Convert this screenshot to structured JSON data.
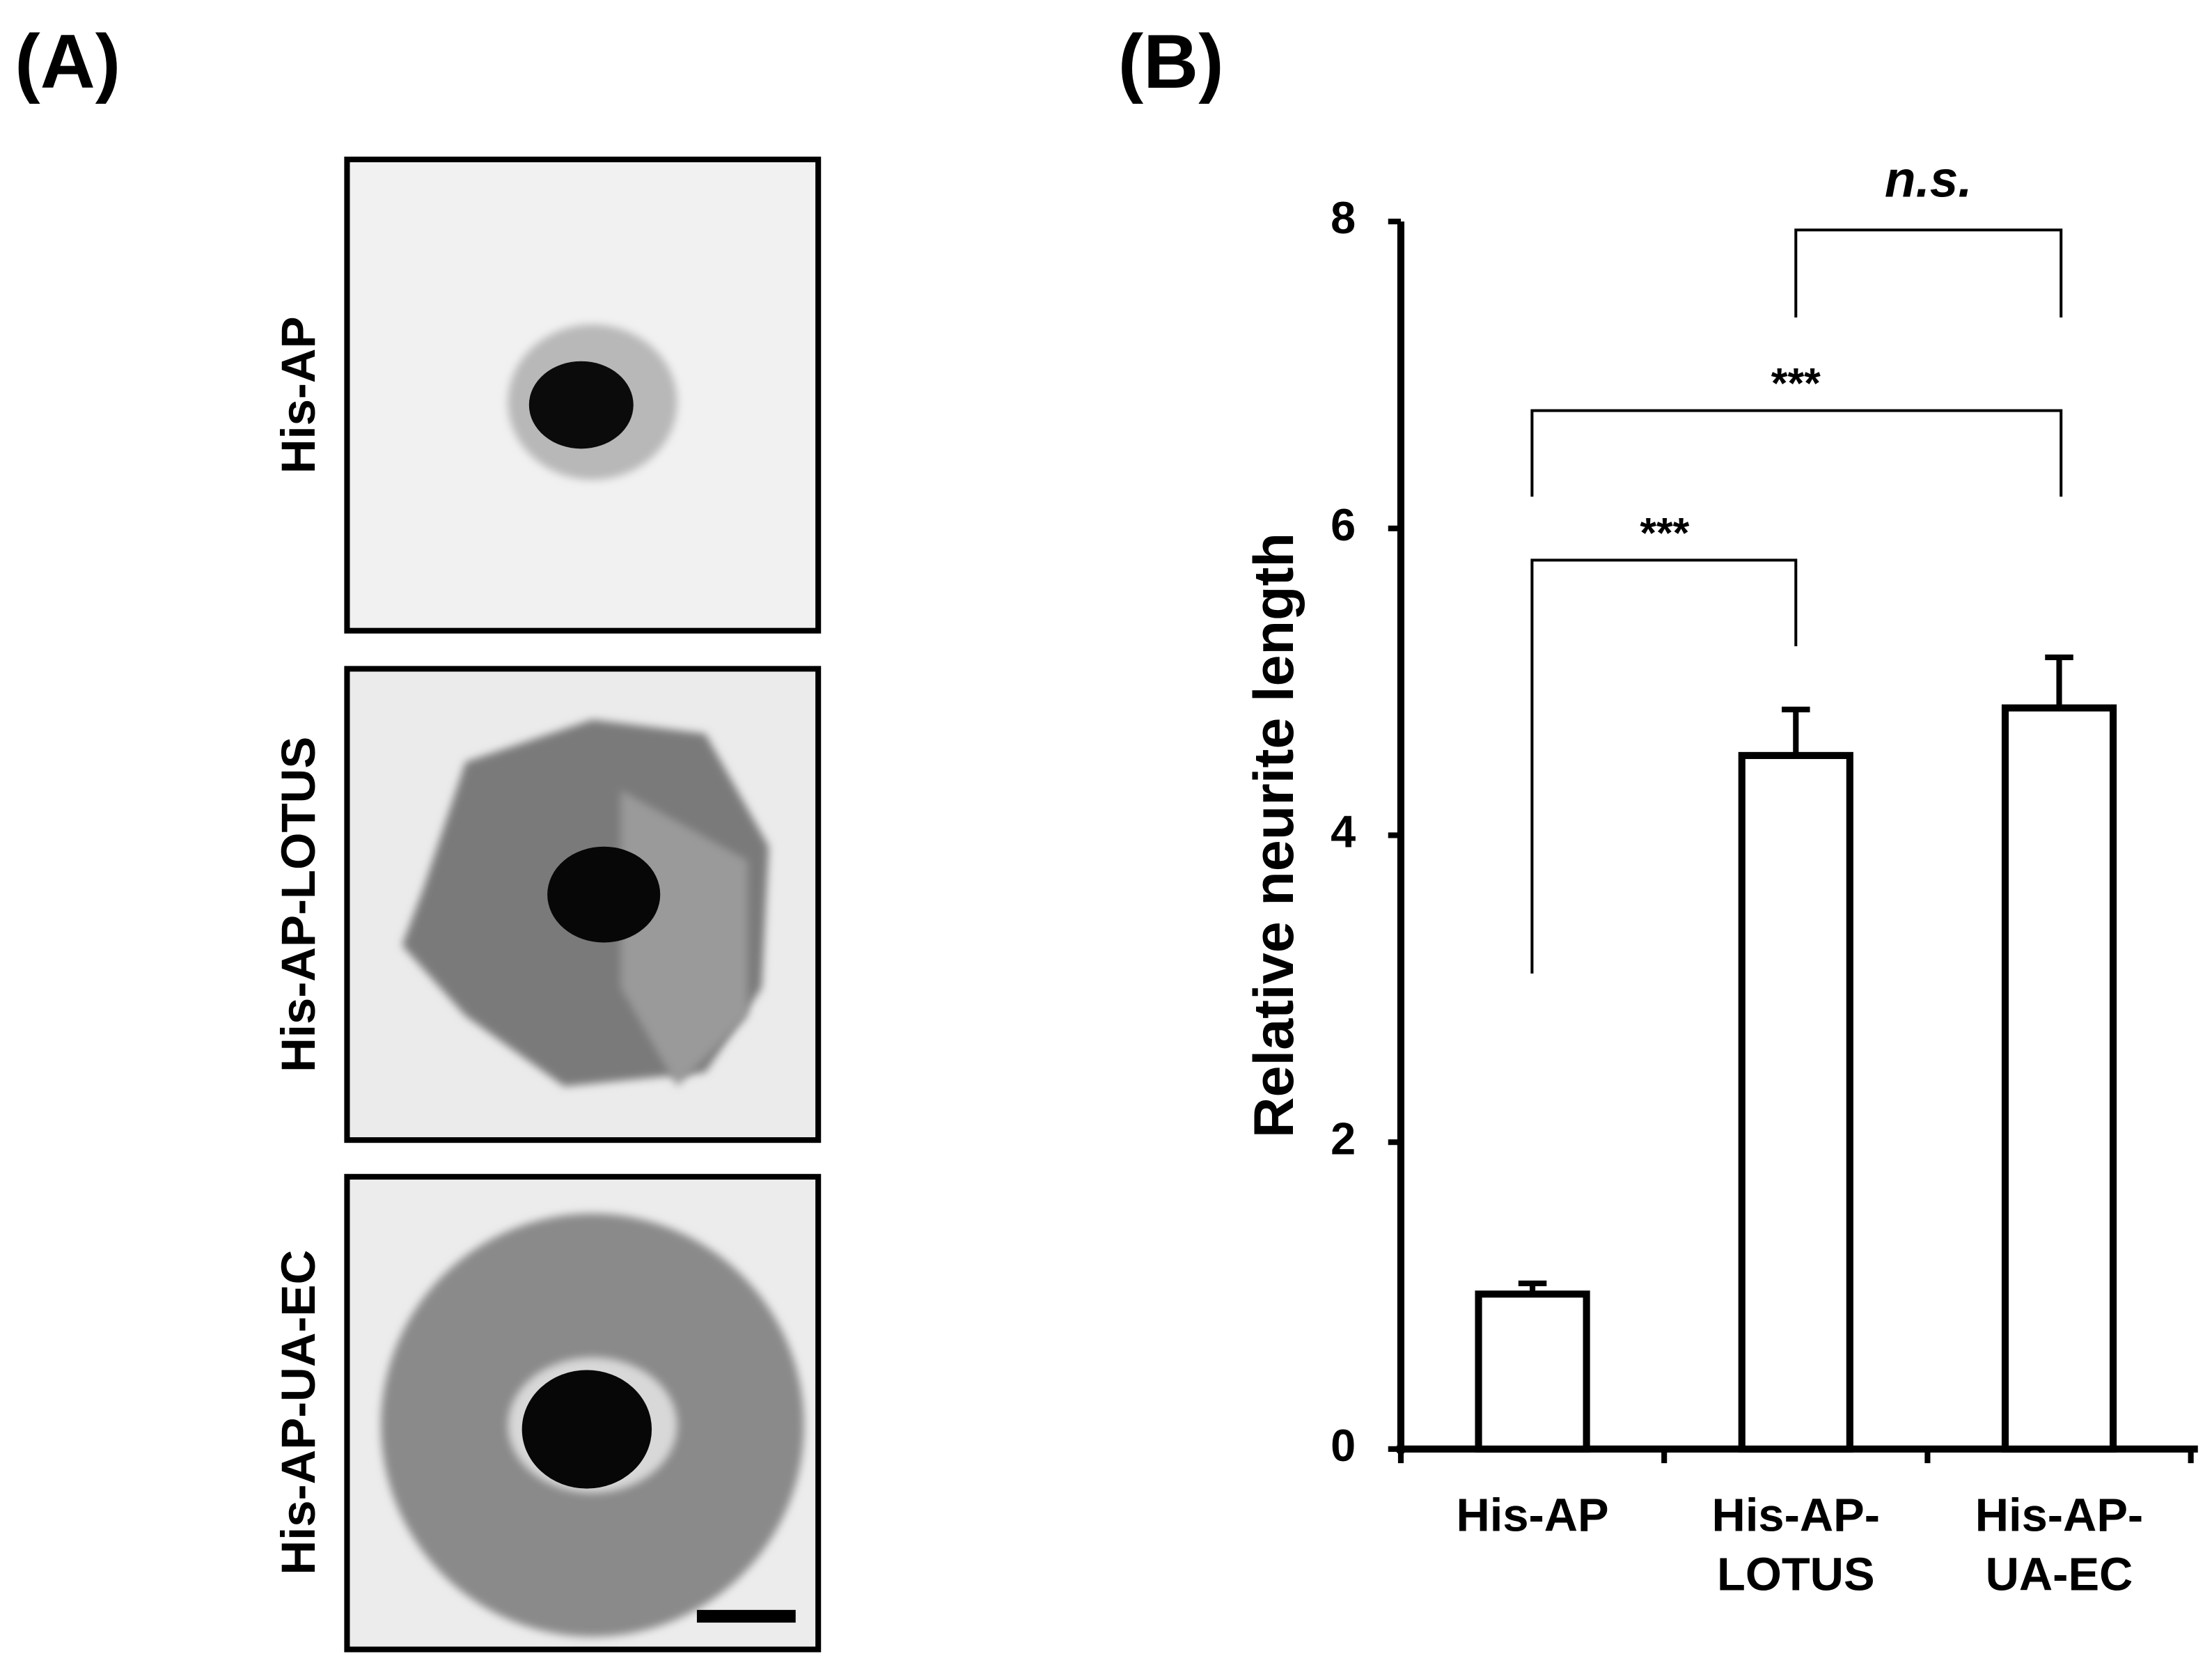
{
  "panel_labels": [
    "(A)",
    "(B)"
  ],
  "panel_a": {
    "images": [
      {
        "label": "His-AP"
      },
      {
        "label": "His-AP-LOTUS"
      },
      {
        "label": "His-AP-UA-EC"
      }
    ]
  },
  "chart_data": {
    "type": "bar",
    "y_label": "Relative neurite length",
    "categories": [
      "His-AP",
      "His-AP-\nLOTUS",
      "His-AP-\nUA-EC"
    ],
    "values": [
      1.01,
      4.52,
      4.83
    ],
    "errors": [
      0.07,
      0.3,
      0.33
    ],
    "color": "#ffffff",
    "ylim": [
      0,
      8
    ],
    "yticks": [
      0,
      2,
      4,
      6,
      8
    ],
    "grid": false,
    "annotations": [
      "***",
      "***",
      "n.s."
    ]
  }
}
